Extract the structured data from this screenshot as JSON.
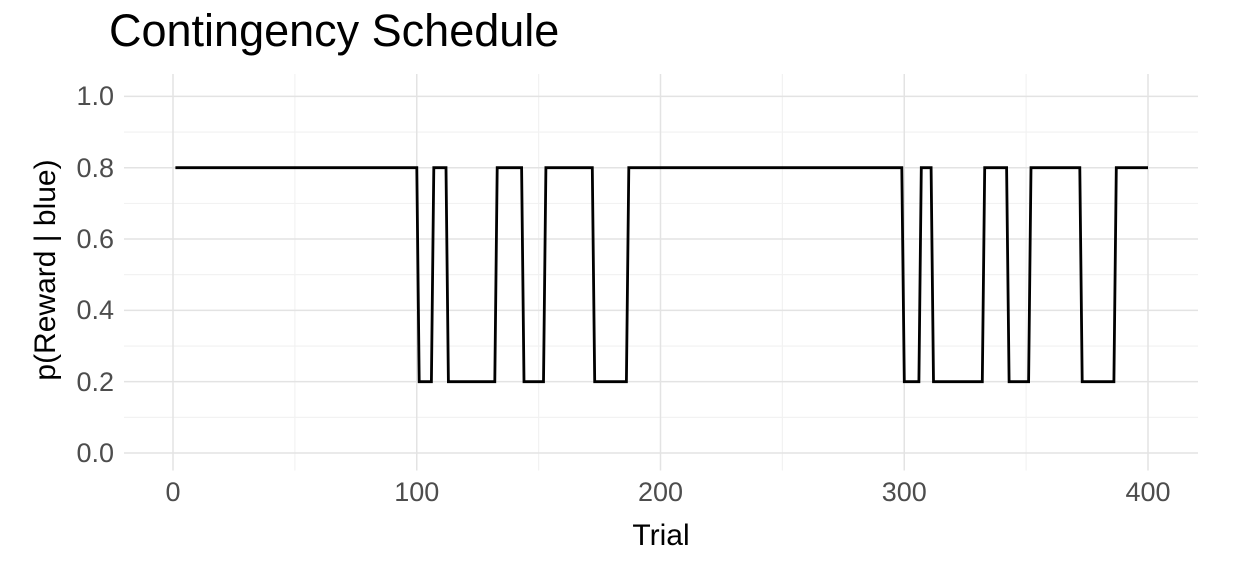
{
  "figure": {
    "background": "#ffffff"
  },
  "chart_data": {
    "type": "line",
    "subtype": "step",
    "title": "Contingency Schedule",
    "xlabel": "Trial",
    "ylabel": "p(Reward | blue)",
    "legend": "none",
    "grid": "major+minor",
    "xlim": [
      -20,
      420
    ],
    "ylim": [
      -0.05,
      1.05
    ],
    "x_ticks": [
      {
        "value": 0,
        "label": "0"
      },
      {
        "value": 100,
        "label": "100"
      },
      {
        "value": 200,
        "label": "200"
      },
      {
        "value": 300,
        "label": "300"
      },
      {
        "value": 400,
        "label": "400"
      }
    ],
    "x_minor_ticks": [
      50,
      150,
      250,
      350
    ],
    "y_ticks": [
      {
        "value": 0.0,
        "label": "0.0"
      },
      {
        "value": 0.2,
        "label": "0.2"
      },
      {
        "value": 0.4,
        "label": "0.4"
      },
      {
        "value": 0.6,
        "label": "0.6"
      },
      {
        "value": 0.8,
        "label": "0.8"
      },
      {
        "value": 1.0,
        "label": "1.0"
      }
    ],
    "y_minor_ticks": [
      0.1,
      0.3,
      0.5,
      0.7,
      0.9
    ],
    "series": [
      {
        "name": "p(Reward | blue)",
        "color": "#000000",
        "segments": [
          {
            "start": 1,
            "end": 100,
            "value": 0.8
          },
          {
            "start": 101,
            "end": 106,
            "value": 0.2
          },
          {
            "start": 107,
            "end": 112,
            "value": 0.8
          },
          {
            "start": 113,
            "end": 132,
            "value": 0.2
          },
          {
            "start": 133,
            "end": 143,
            "value": 0.8
          },
          {
            "start": 144,
            "end": 152,
            "value": 0.2
          },
          {
            "start": 153,
            "end": 172,
            "value": 0.8
          },
          {
            "start": 173,
            "end": 186,
            "value": 0.2
          },
          {
            "start": 187,
            "end": 299,
            "value": 0.8
          },
          {
            "start": 300,
            "end": 306,
            "value": 0.2
          },
          {
            "start": 307,
            "end": 311,
            "value": 0.8
          },
          {
            "start": 312,
            "end": 332,
            "value": 0.2
          },
          {
            "start": 333,
            "end": 342,
            "value": 0.8
          },
          {
            "start": 343,
            "end": 351,
            "value": 0.2
          },
          {
            "start": 352,
            "end": 372,
            "value": 0.8
          },
          {
            "start": 373,
            "end": 386,
            "value": 0.2
          },
          {
            "start": 387,
            "end": 400,
            "value": 0.8
          }
        ]
      }
    ],
    "colors": {
      "line": "#000000",
      "grid_major": "#e3e3e3",
      "grid_minor": "#f1f1f1",
      "tick_label": "#4d4d4d",
      "title": "#000000",
      "axis_title": "#000000"
    }
  }
}
